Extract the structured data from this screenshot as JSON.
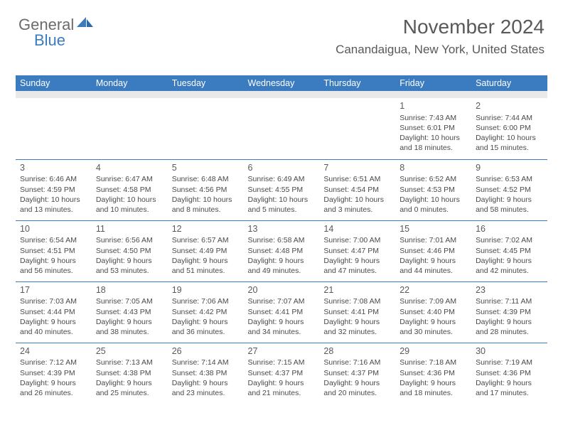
{
  "logo": {
    "part1": "General",
    "part2": "Blue"
  },
  "title": "November 2024",
  "location": "Canandaigua, New York, United States",
  "colors": {
    "header_bg": "#3b7bbf",
    "header_fg": "#ffffff",
    "text": "#4a4a4a",
    "title_color": "#595959",
    "spacer_bg": "#e9e9e9",
    "cell_border": "#3b7bbf"
  },
  "day_headers": [
    "Sunday",
    "Monday",
    "Tuesday",
    "Wednesday",
    "Thursday",
    "Friday",
    "Saturday"
  ],
  "weeks": [
    [
      null,
      null,
      null,
      null,
      null,
      {
        "n": "1",
        "sunrise": "7:43 AM",
        "sunset": "6:01 PM",
        "daylight": "10 hours and 18 minutes."
      },
      {
        "n": "2",
        "sunrise": "7:44 AM",
        "sunset": "6:00 PM",
        "daylight": "10 hours and 15 minutes."
      }
    ],
    [
      {
        "n": "3",
        "sunrise": "6:46 AM",
        "sunset": "4:59 PM",
        "daylight": "10 hours and 13 minutes."
      },
      {
        "n": "4",
        "sunrise": "6:47 AM",
        "sunset": "4:58 PM",
        "daylight": "10 hours and 10 minutes."
      },
      {
        "n": "5",
        "sunrise": "6:48 AM",
        "sunset": "4:56 PM",
        "daylight": "10 hours and 8 minutes."
      },
      {
        "n": "6",
        "sunrise": "6:49 AM",
        "sunset": "4:55 PM",
        "daylight": "10 hours and 5 minutes."
      },
      {
        "n": "7",
        "sunrise": "6:51 AM",
        "sunset": "4:54 PM",
        "daylight": "10 hours and 3 minutes."
      },
      {
        "n": "8",
        "sunrise": "6:52 AM",
        "sunset": "4:53 PM",
        "daylight": "10 hours and 0 minutes."
      },
      {
        "n": "9",
        "sunrise": "6:53 AM",
        "sunset": "4:52 PM",
        "daylight": "9 hours and 58 minutes."
      }
    ],
    [
      {
        "n": "10",
        "sunrise": "6:54 AM",
        "sunset": "4:51 PM",
        "daylight": "9 hours and 56 minutes."
      },
      {
        "n": "11",
        "sunrise": "6:56 AM",
        "sunset": "4:50 PM",
        "daylight": "9 hours and 53 minutes."
      },
      {
        "n": "12",
        "sunrise": "6:57 AM",
        "sunset": "4:49 PM",
        "daylight": "9 hours and 51 minutes."
      },
      {
        "n": "13",
        "sunrise": "6:58 AM",
        "sunset": "4:48 PM",
        "daylight": "9 hours and 49 minutes."
      },
      {
        "n": "14",
        "sunrise": "7:00 AM",
        "sunset": "4:47 PM",
        "daylight": "9 hours and 47 minutes."
      },
      {
        "n": "15",
        "sunrise": "7:01 AM",
        "sunset": "4:46 PM",
        "daylight": "9 hours and 44 minutes."
      },
      {
        "n": "16",
        "sunrise": "7:02 AM",
        "sunset": "4:45 PM",
        "daylight": "9 hours and 42 minutes."
      }
    ],
    [
      {
        "n": "17",
        "sunrise": "7:03 AM",
        "sunset": "4:44 PM",
        "daylight": "9 hours and 40 minutes."
      },
      {
        "n": "18",
        "sunrise": "7:05 AM",
        "sunset": "4:43 PM",
        "daylight": "9 hours and 38 minutes."
      },
      {
        "n": "19",
        "sunrise": "7:06 AM",
        "sunset": "4:42 PM",
        "daylight": "9 hours and 36 minutes."
      },
      {
        "n": "20",
        "sunrise": "7:07 AM",
        "sunset": "4:41 PM",
        "daylight": "9 hours and 34 minutes."
      },
      {
        "n": "21",
        "sunrise": "7:08 AM",
        "sunset": "4:41 PM",
        "daylight": "9 hours and 32 minutes."
      },
      {
        "n": "22",
        "sunrise": "7:09 AM",
        "sunset": "4:40 PM",
        "daylight": "9 hours and 30 minutes."
      },
      {
        "n": "23",
        "sunrise": "7:11 AM",
        "sunset": "4:39 PM",
        "daylight": "9 hours and 28 minutes."
      }
    ],
    [
      {
        "n": "24",
        "sunrise": "7:12 AM",
        "sunset": "4:39 PM",
        "daylight": "9 hours and 26 minutes."
      },
      {
        "n": "25",
        "sunrise": "7:13 AM",
        "sunset": "4:38 PM",
        "daylight": "9 hours and 25 minutes."
      },
      {
        "n": "26",
        "sunrise": "7:14 AM",
        "sunset": "4:38 PM",
        "daylight": "9 hours and 23 minutes."
      },
      {
        "n": "27",
        "sunrise": "7:15 AM",
        "sunset": "4:37 PM",
        "daylight": "9 hours and 21 minutes."
      },
      {
        "n": "28",
        "sunrise": "7:16 AM",
        "sunset": "4:37 PM",
        "daylight": "9 hours and 20 minutes."
      },
      {
        "n": "29",
        "sunrise": "7:18 AM",
        "sunset": "4:36 PM",
        "daylight": "9 hours and 18 minutes."
      },
      {
        "n": "30",
        "sunrise": "7:19 AM",
        "sunset": "4:36 PM",
        "daylight": "9 hours and 17 minutes."
      }
    ]
  ],
  "labels": {
    "sunrise": "Sunrise: ",
    "sunset": "Sunset: ",
    "daylight": "Daylight: "
  }
}
